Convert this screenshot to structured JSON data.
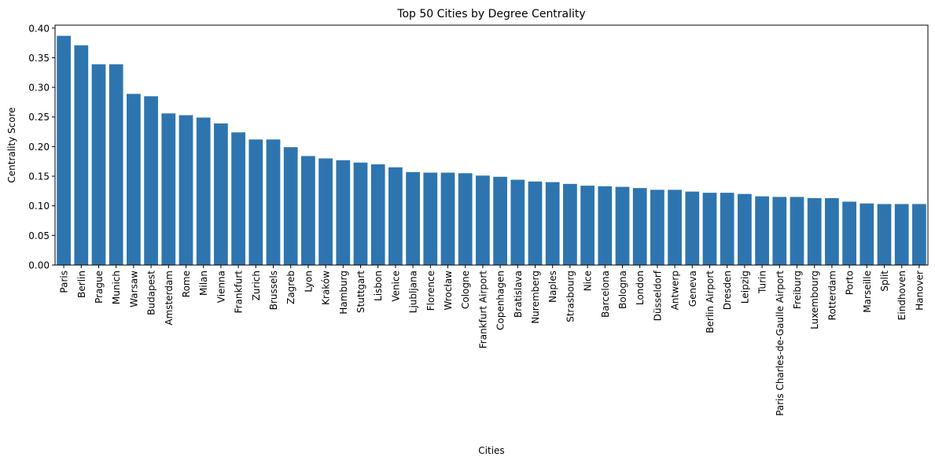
{
  "chart_data": {
    "type": "bar",
    "title": "Top 50 Cities by Degree Centrality",
    "xlabel": "Cities",
    "ylabel": "Centrality Score",
    "ylim": [
      0,
      0.405
    ],
    "yticks": [
      "0.00",
      "0.05",
      "0.10",
      "0.15",
      "0.20",
      "0.25",
      "0.30",
      "0.35",
      "0.40"
    ],
    "grid": false,
    "bar_color": "#2e75b0",
    "categories": [
      "Paris",
      "Berlin",
      "Prague",
      "Munich",
      "Warsaw",
      "Budapest",
      "Amsterdam",
      "Rome",
      "Milan",
      "Vienna",
      "Frankfurt",
      "Zurich",
      "Brussels",
      "Zagreb",
      "Lyon",
      "Kraków",
      "Hamburg",
      "Stuttgart",
      "Lisbon",
      "Venice",
      "Ljubljana",
      "Florence",
      "Wrocław",
      "Cologne",
      "Frankfurt Airport",
      "Copenhagen",
      "Bratislava",
      "Nuremberg",
      "Naples",
      "Strasbourg",
      "Nice",
      "Barcelona",
      "Bologna",
      "London",
      "Düsseldorf",
      "Antwerp",
      "Geneva",
      "Berlin Airport",
      "Dresden",
      "Leipzig",
      "Turin",
      "Paris Charles-de-Gaulle Airport",
      "Freiburg",
      "Luxembourg",
      "Rotterdam",
      "Porto",
      "Marseille",
      "Split",
      "Eindhoven",
      "Hanover"
    ],
    "values": [
      0.387,
      0.371,
      0.339,
      0.339,
      0.289,
      0.285,
      0.256,
      0.253,
      0.249,
      0.239,
      0.224,
      0.212,
      0.212,
      0.199,
      0.184,
      0.18,
      0.177,
      0.173,
      0.17,
      0.165,
      0.157,
      0.156,
      0.156,
      0.155,
      0.151,
      0.149,
      0.144,
      0.141,
      0.14,
      0.137,
      0.134,
      0.133,
      0.132,
      0.13,
      0.127,
      0.127,
      0.124,
      0.122,
      0.122,
      0.12,
      0.116,
      0.115,
      0.115,
      0.113,
      0.113,
      0.107,
      0.104,
      0.103,
      0.103,
      0.103
    ]
  }
}
